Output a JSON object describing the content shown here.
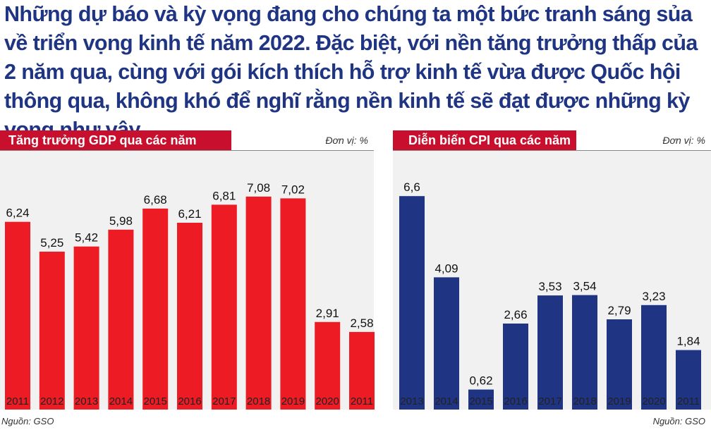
{
  "intro_text": "Những dự báo và kỳ vọng đang cho chúng ta một bức tranh sáng sủa về triển vọng kinh tế năm 2022. Đặc biệt, với nền tăng trưởng thấp của 2 năm qua, cùng với gói kích thích hỗ trợ kinh tế vừa được Quốc hội thông qua, không khó để nghĩ rằng nền kinh tế sẽ đạt được những kỳ vọng như vậy.",
  "colors": {
    "intro_text": "#1f3584",
    "header_bar": "#c8102e",
    "gdp_bars": "#ed1c24",
    "cpi_bars": "#1f3584",
    "plot_background": "#f1f1f1"
  },
  "chart_data": [
    {
      "type": "bar",
      "title": "Tăng trưởng GDP qua các năm",
      "unit_label": "Đơn vị: %",
      "source": "Nguồn: GSO",
      "categories": [
        "2011",
        "2012",
        "2013",
        "2014",
        "2015",
        "2016",
        "2017",
        "2018",
        "2019",
        "2020",
        "2011"
      ],
      "values": [
        6.24,
        5.25,
        5.42,
        5.98,
        6.68,
        6.21,
        6.81,
        7.08,
        7.02,
        2.91,
        2.58
      ],
      "value_labels": [
        "6,24",
        "5,25",
        "5,42",
        "5,98",
        "6,68",
        "6,21",
        "6,81",
        "7,08",
        "7,02",
        "2,91",
        "2,58"
      ],
      "ylim": [
        0,
        8.6
      ],
      "grid": false,
      "legend": "none"
    },
    {
      "type": "bar",
      "title": "Diễn biến CPI qua các năm",
      "unit_label": "Đơn vị: %",
      "source": "Nguồn: GSO",
      "categories": [
        "2013",
        "2014",
        "2015",
        "2016",
        "2017",
        "2018",
        "2019",
        "2020",
        "2011"
      ],
      "values": [
        6.6,
        4.09,
        0.62,
        2.66,
        3.53,
        3.54,
        2.79,
        3.23,
        1.84
      ],
      "value_labels": [
        "6,6",
        "4,09",
        "0,62",
        "2,66",
        "3,53",
        "3,54",
        "2,79",
        "3,23",
        "1,84"
      ],
      "ylim": [
        0,
        8.0
      ],
      "grid": false,
      "legend": "none"
    }
  ]
}
